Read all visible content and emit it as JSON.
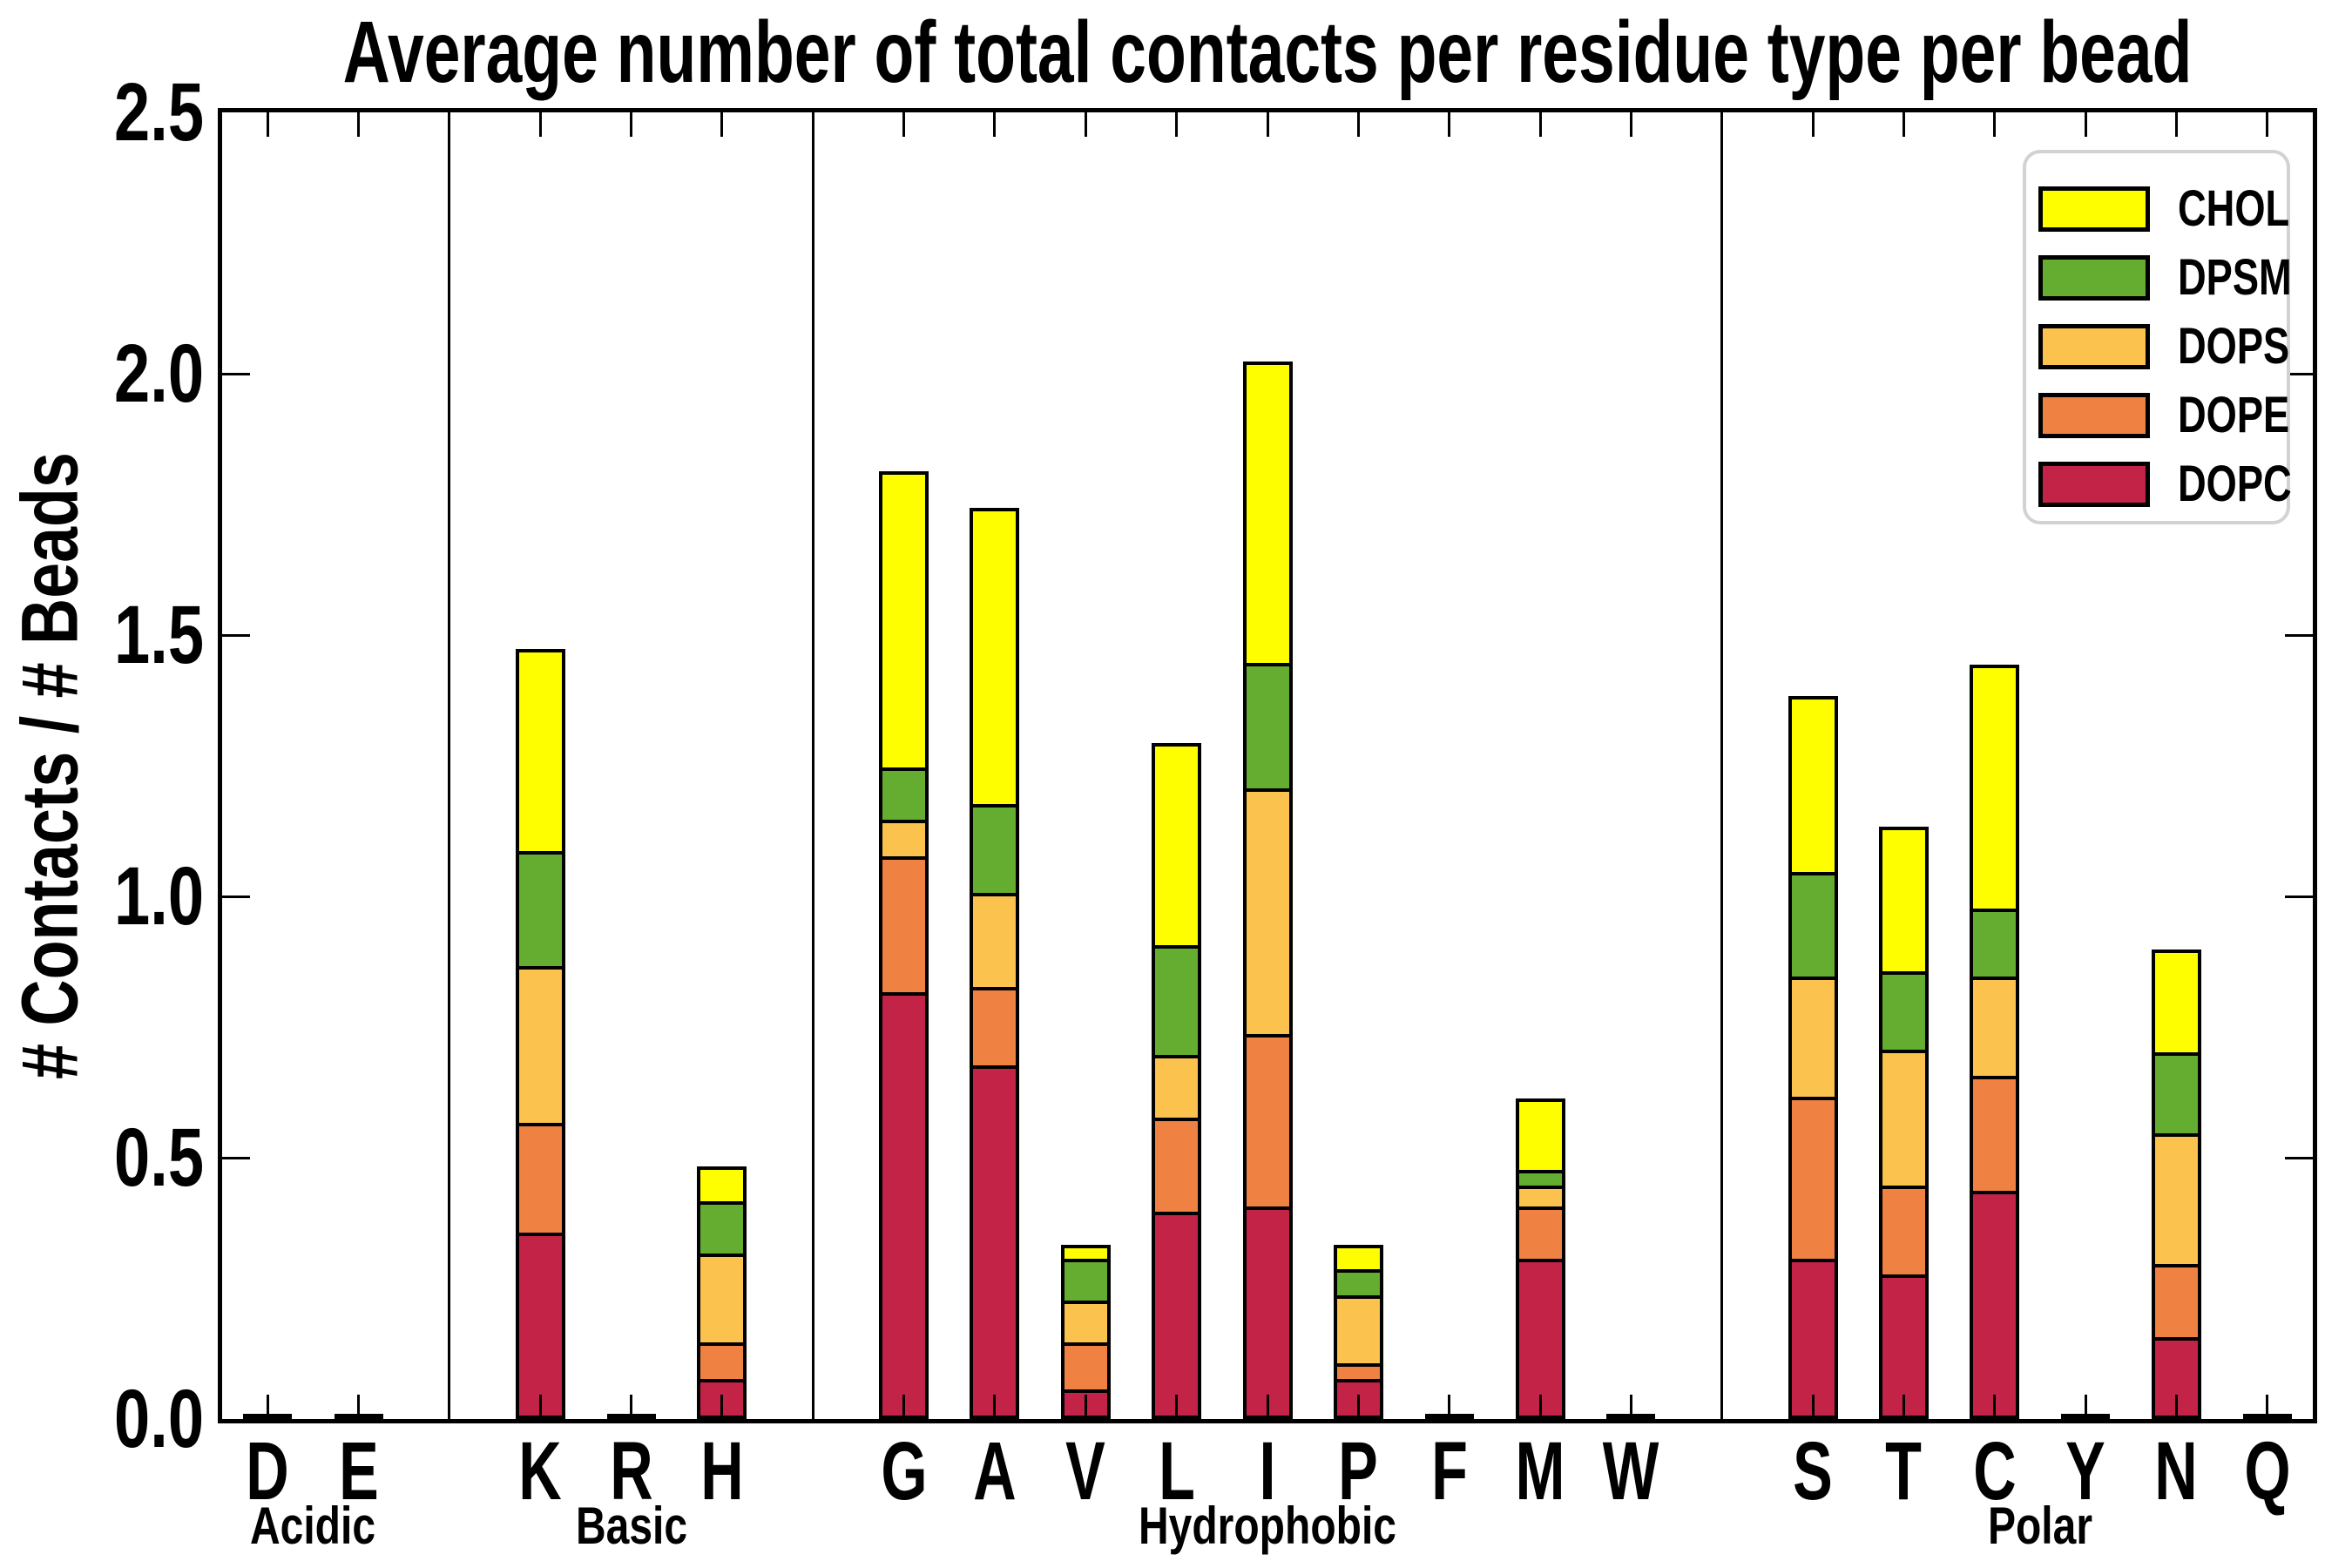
{
  "title": "Average number of total contacts per residue type per bead",
  "ylabel": "# Contacts / # Beads",
  "legend": {
    "entries": [
      "CHOL",
      "DPSM",
      "DOPS",
      "DOPE",
      "DOPC"
    ]
  },
  "colors": {
    "CHOL": "#fefe00",
    "DPSM": "#65ad31",
    "DOPS": "#fbc24d",
    "DOPE": "#ef8142",
    "DOPC": "#c32347"
  },
  "chart_data": {
    "type": "bar",
    "stacked": true,
    "title": "Average number of total contacts per residue type per bead",
    "xlabel": "",
    "ylabel": "# Contacts / # Beads",
    "ylim": [
      0,
      2.5
    ],
    "yticks": [
      "0.0",
      "0.5",
      "1.0",
      "1.5",
      "2.0",
      "2.5"
    ],
    "legend_position": "upper right",
    "grid": false,
    "groups": [
      {
        "label": "Acidic",
        "categories": [
          "D",
          "E"
        ]
      },
      {
        "label": "Basic",
        "categories": [
          "K",
          "R",
          "H"
        ]
      },
      {
        "label": "Hydrophobic",
        "categories": [
          "G",
          "A",
          "V",
          "L",
          "I",
          "P",
          "F",
          "M",
          "W"
        ]
      },
      {
        "label": "Polar",
        "categories": [
          "S",
          "T",
          "C",
          "Y",
          "N",
          "Q"
        ]
      }
    ],
    "categories": [
      "D",
      "E",
      "K",
      "R",
      "H",
      "G",
      "A",
      "V",
      "L",
      "I",
      "P",
      "F",
      "M",
      "W",
      "S",
      "T",
      "C",
      "Y",
      "N",
      "Q"
    ],
    "series": [
      {
        "name": "DOPC",
        "color": "#c32347",
        "values": [
          0.005,
          0.005,
          0.35,
          0.005,
          0.07,
          0.81,
          0.67,
          0.05,
          0.39,
          0.4,
          0.07,
          0.005,
          0.3,
          0.005,
          0.3,
          0.27,
          0.43,
          0.005,
          0.15,
          0.005
        ]
      },
      {
        "name": "DOPE",
        "color": "#ef8142",
        "values": [
          0,
          0,
          0.21,
          0,
          0.07,
          0.26,
          0.15,
          0.09,
          0.18,
          0.33,
          0.03,
          0,
          0.1,
          0,
          0.31,
          0.17,
          0.22,
          0,
          0.14,
          0
        ]
      },
      {
        "name": "DOPS",
        "color": "#fbc24d",
        "values": [
          0,
          0,
          0.3,
          0,
          0.17,
          0.07,
          0.18,
          0.08,
          0.12,
          0.47,
          0.13,
          0,
          0.04,
          0,
          0.23,
          0.26,
          0.19,
          0,
          0.25,
          0
        ]
      },
      {
        "name": "DPSM",
        "color": "#65ad31",
        "values": [
          0,
          0,
          0.22,
          0,
          0.1,
          0.1,
          0.17,
          0.08,
          0.21,
          0.24,
          0.05,
          0,
          0.03,
          0,
          0.2,
          0.15,
          0.13,
          0,
          0.155,
          0
        ]
      },
      {
        "name": "CHOL",
        "color": "#fefe00",
        "values": [
          0,
          0,
          0.38,
          0,
          0.06,
          0.56,
          0.56,
          0.02,
          0.38,
          0.57,
          0.04,
          0,
          0.13,
          0,
          0.33,
          0.27,
          0.46,
          0,
          0.19,
          0
        ]
      }
    ]
  }
}
